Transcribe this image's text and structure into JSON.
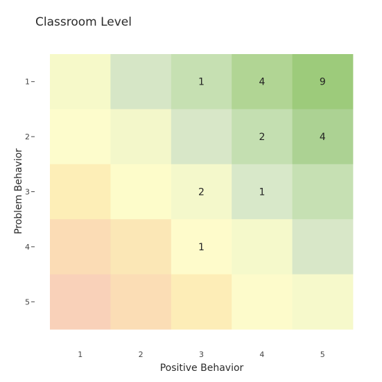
{
  "chart_data": {
    "type": "heatmap",
    "title": "Classroom Level",
    "xlabel": "Positive Behavior",
    "ylabel": "Problem Behavior",
    "x_categories": [
      "1",
      "2",
      "3",
      "4",
      "5"
    ],
    "y_categories": [
      "1",
      "2",
      "3",
      "4",
      "5"
    ],
    "cells": [
      {
        "x": "1",
        "y": "1",
        "label": "",
        "color": "#f6f9c9"
      },
      {
        "x": "2",
        "y": "1",
        "label": "",
        "color": "#d6e6c6"
      },
      {
        "x": "3",
        "y": "1",
        "label": "1",
        "color": "#c6e0b2"
      },
      {
        "x": "4",
        "y": "1",
        "label": "4",
        "color": "#b1d594"
      },
      {
        "x": "5",
        "y": "1",
        "label": "9",
        "color": "#9dcb7b"
      },
      {
        "x": "1",
        "y": "2",
        "label": "",
        "color": "#fdfccc"
      },
      {
        "x": "2",
        "y": "2",
        "label": "",
        "color": "#f3f7ca"
      },
      {
        "x": "3",
        "y": "2",
        "label": "",
        "color": "#d8e7c8"
      },
      {
        "x": "4",
        "y": "2",
        "label": "2",
        "color": "#c4dfb1"
      },
      {
        "x": "5",
        "y": "2",
        "label": "4",
        "color": "#acd293"
      },
      {
        "x": "1",
        "y": "3",
        "label": "",
        "color": "#fdeeb7"
      },
      {
        "x": "2",
        "y": "3",
        "label": "",
        "color": "#fdfcca"
      },
      {
        "x": "3",
        "y": "3",
        "label": "2",
        "color": "#f4f8cb"
      },
      {
        "x": "4",
        "y": "3",
        "label": "1",
        "color": "#d8e8c9"
      },
      {
        "x": "5",
        "y": "3",
        "label": "",
        "color": "#c6e0b3"
      },
      {
        "x": "1",
        "y": "4",
        "label": "",
        "color": "#fbdcb5"
      },
      {
        "x": "2",
        "y": "4",
        "label": "",
        "color": "#fbe7b6"
      },
      {
        "x": "3",
        "y": "4",
        "label": "1",
        "color": "#fefbcb"
      },
      {
        "x": "4",
        "y": "4",
        "label": "",
        "color": "#f5f9cb"
      },
      {
        "x": "5",
        "y": "4",
        "label": "",
        "color": "#d8e7c8"
      },
      {
        "x": "1",
        "y": "5",
        "label": "",
        "color": "#f9d1b9"
      },
      {
        "x": "2",
        "y": "5",
        "label": "",
        "color": "#fbddb5"
      },
      {
        "x": "3",
        "y": "5",
        "label": "",
        "color": "#fdedb7"
      },
      {
        "x": "4",
        "y": "5",
        "label": "",
        "color": "#fdfbcb"
      },
      {
        "x": "5",
        "y": "5",
        "label": "",
        "color": "#f6f9cb"
      }
    ]
  }
}
